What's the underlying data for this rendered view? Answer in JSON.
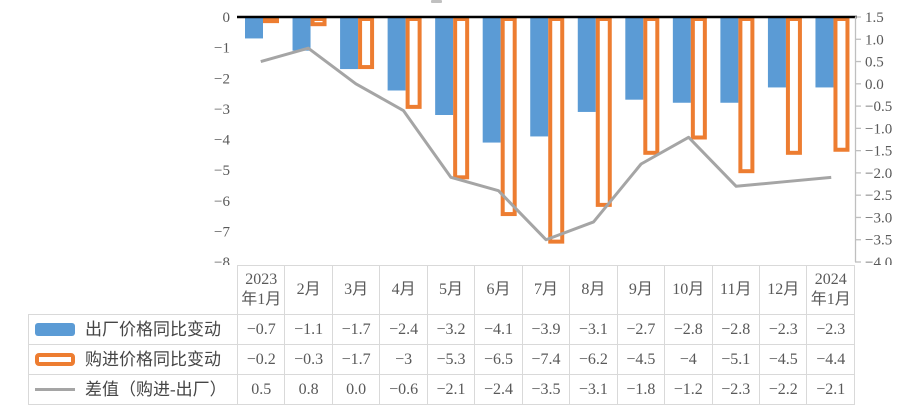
{
  "colors": {
    "factory_bar": "#5B9BD5",
    "purchase_bar_outline": "#ED7D31",
    "difference_line": "#A5A5A5",
    "zero_line": "#000000",
    "right_axis_line": "#BFBFBF",
    "axis_text": "#595959",
    "table_border": "#D9D9D9"
  },
  "chart_data": {
    "type": "bar",
    "subtype": "combo-bar-line-with-data-table",
    "categories": [
      "2023年1月",
      "2月",
      "3月",
      "4月",
      "5月",
      "6月",
      "7月",
      "8月",
      "9月",
      "10月",
      "11月",
      "12月",
      "2024年1月"
    ],
    "series": [
      {
        "name": "出厂价格同比变动",
        "type": "bar",
        "style": "filled",
        "color": "#5B9BD5",
        "axis": "left",
        "values": [
          -0.7,
          -1.1,
          -1.7,
          -2.4,
          -3.2,
          -4.1,
          -3.9,
          -3.1,
          -2.7,
          -2.8,
          -2.8,
          -2.3,
          -2.3
        ]
      },
      {
        "name": "购进价格同比变动",
        "type": "bar",
        "style": "outlined",
        "color": "#ED7D31",
        "axis": "left",
        "values": [
          -0.2,
          -0.3,
          -1.7,
          -3,
          -5.3,
          -6.5,
          -7.4,
          -6.2,
          -4.5,
          -4,
          -5.1,
          -4.5,
          -4.4
        ]
      },
      {
        "name": "差值（购进-出厂）",
        "type": "line",
        "color": "#A5A5A5",
        "axis": "right",
        "values": [
          0.5,
          0.8,
          0.0,
          -0.6,
          -2.1,
          -2.4,
          -3.5,
          -3.1,
          -1.8,
          -1.2,
          -2.3,
          -2.2,
          -2.1
        ]
      }
    ],
    "left_axis": {
      "min": -8,
      "max": 0,
      "ticks": [
        "0",
        "−1",
        "−2",
        "−3",
        "−4",
        "−5",
        "−6",
        "−7",
        "−8"
      ]
    },
    "right_axis": {
      "min": -4,
      "max": 1.5,
      "ticks": [
        "1.5",
        "1.0",
        "0.5",
        "0.0",
        "−0.5",
        "−1.0",
        "−1.5",
        "−2.0",
        "−2.5",
        "−3.0",
        "−3.5",
        "−4.0"
      ]
    },
    "grid": false,
    "legend_position": "data-table-left",
    "title": ""
  },
  "table": {
    "col_headers": [
      "2023\n年1月",
      "2月",
      "3月",
      "4月",
      "5月",
      "6月",
      "7月",
      "8月",
      "9月",
      "10月",
      "11月",
      "12月",
      "2024\n年1月"
    ],
    "rows": [
      {
        "label": "出厂价格同比变动",
        "swatch": "bar-filled",
        "cells": [
          "−0.7",
          "−1.1",
          "−1.7",
          "−2.4",
          "−3.2",
          "−4.1",
          "−3.9",
          "−3.1",
          "−2.7",
          "−2.8",
          "−2.8",
          "−2.3",
          "−2.3"
        ]
      },
      {
        "label": "购进价格同比变动",
        "swatch": "bar-outlined",
        "cells": [
          "−0.2",
          "−0.3",
          "−1.7",
          "−3",
          "−5.3",
          "−6.5",
          "−7.4",
          "−6.2",
          "−4.5",
          "−4",
          "−5.1",
          "−4.5",
          "−4.4"
        ]
      },
      {
        "label": "差值（购进-出厂）",
        "swatch": "line",
        "cells": [
          "0.5",
          "0.8",
          "0.0",
          "−0.6",
          "−2.1",
          "−2.4",
          "−3.5",
          "−3.1",
          "−1.8",
          "−1.2",
          "−2.3",
          "−2.2",
          "−2.1"
        ]
      }
    ]
  }
}
